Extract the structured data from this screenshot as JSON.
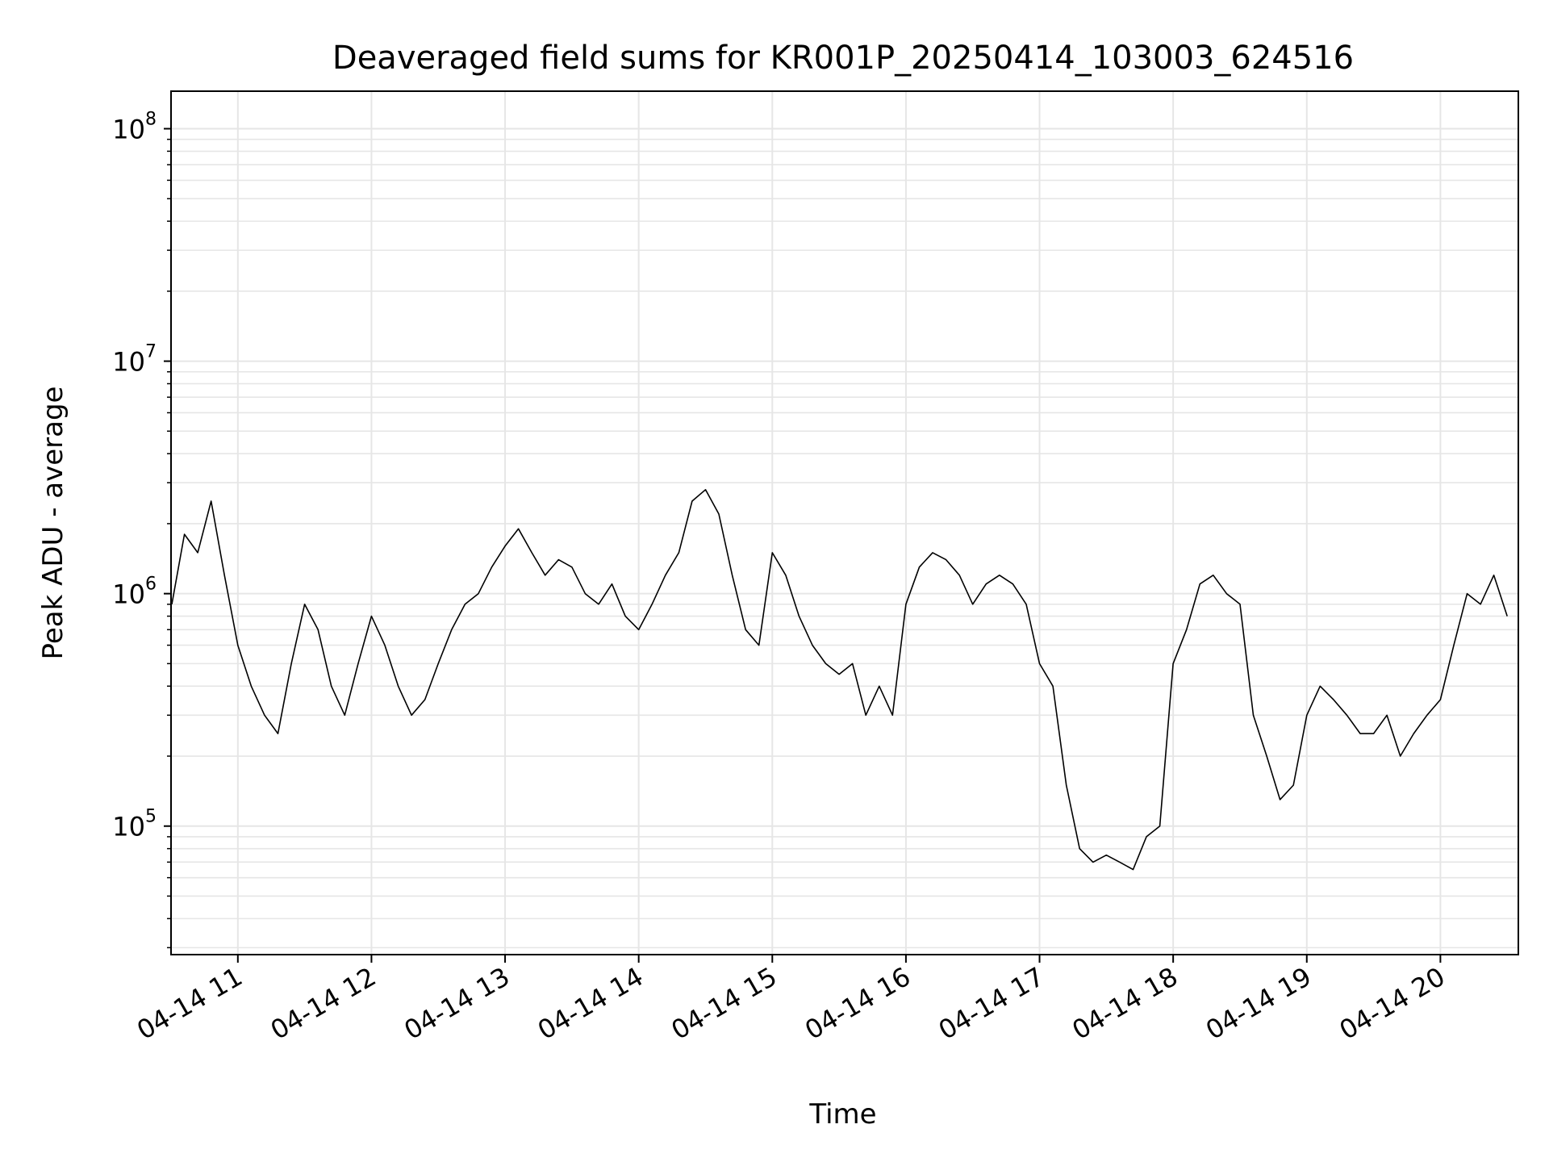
{
  "chart_data": {
    "type": "line",
    "title": "Deaveraged field sums for KR001P_20250414_103003_624516",
    "xlabel": "Time",
    "ylabel": "Peak ADU - average",
    "yscale": "log",
    "ylim": [
      28000,
      145000000
    ],
    "xlim": [
      "2025-04-14 10:30",
      "2025-04-14 20:35"
    ],
    "grid": true,
    "line_color": "#000000",
    "grid_color": "#e6e6e6",
    "x_ticks": [
      {
        "value": "2025-04-14 11:00",
        "label": "04-14 11"
      },
      {
        "value": "2025-04-14 12:00",
        "label": "04-14 12"
      },
      {
        "value": "2025-04-14 13:00",
        "label": "04-14 13"
      },
      {
        "value": "2025-04-14 14:00",
        "label": "04-14 14"
      },
      {
        "value": "2025-04-14 15:00",
        "label": "04-14 15"
      },
      {
        "value": "2025-04-14 16:00",
        "label": "04-14 16"
      },
      {
        "value": "2025-04-14 17:00",
        "label": "04-14 17"
      },
      {
        "value": "2025-04-14 18:00",
        "label": "04-14 18"
      },
      {
        "value": "2025-04-14 19:00",
        "label": "04-14 19"
      },
      {
        "value": "2025-04-14 20:00",
        "label": "04-14 20"
      }
    ],
    "y_ticks": [
      {
        "value": 100000,
        "base": "10",
        "exp": "5"
      },
      {
        "value": 1000000,
        "base": "10",
        "exp": "6"
      },
      {
        "value": 10000000,
        "base": "10",
        "exp": "7"
      },
      {
        "value": 100000000,
        "base": "10",
        "exp": "8"
      }
    ],
    "series": [
      {
        "x": [
          "2025-04-14 10:30",
          "2025-04-14 10:36",
          "2025-04-14 10:42",
          "2025-04-14 10:48",
          "2025-04-14 10:54",
          "2025-04-14 11:00",
          "2025-04-14 11:06",
          "2025-04-14 11:12",
          "2025-04-14 11:18",
          "2025-04-14 11:24",
          "2025-04-14 11:30",
          "2025-04-14 11:36",
          "2025-04-14 11:42",
          "2025-04-14 11:48",
          "2025-04-14 11:54",
          "2025-04-14 12:00",
          "2025-04-14 12:06",
          "2025-04-14 12:12",
          "2025-04-14 12:18",
          "2025-04-14 12:24",
          "2025-04-14 12:30",
          "2025-04-14 12:36",
          "2025-04-14 12:42",
          "2025-04-14 12:48",
          "2025-04-14 12:54",
          "2025-04-14 13:00",
          "2025-04-14 13:06",
          "2025-04-14 13:12",
          "2025-04-14 13:18",
          "2025-04-14 13:24",
          "2025-04-14 13:30",
          "2025-04-14 13:36",
          "2025-04-14 13:42",
          "2025-04-14 13:48",
          "2025-04-14 13:54",
          "2025-04-14 14:00",
          "2025-04-14 14:06",
          "2025-04-14 14:12",
          "2025-04-14 14:18",
          "2025-04-14 14:24",
          "2025-04-14 14:30",
          "2025-04-14 14:36",
          "2025-04-14 14:42",
          "2025-04-14 14:48",
          "2025-04-14 14:54",
          "2025-04-14 15:00",
          "2025-04-14 15:06",
          "2025-04-14 15:12",
          "2025-04-14 15:18",
          "2025-04-14 15:24",
          "2025-04-14 15:30",
          "2025-04-14 15:36",
          "2025-04-14 15:42",
          "2025-04-14 15:48",
          "2025-04-14 15:54",
          "2025-04-14 16:00",
          "2025-04-14 16:06",
          "2025-04-14 16:12",
          "2025-04-14 16:18",
          "2025-04-14 16:24",
          "2025-04-14 16:30",
          "2025-04-14 16:36",
          "2025-04-14 16:42",
          "2025-04-14 16:48",
          "2025-04-14 16:54",
          "2025-04-14 17:00",
          "2025-04-14 17:06",
          "2025-04-14 17:12",
          "2025-04-14 17:18",
          "2025-04-14 17:24",
          "2025-04-14 17:30",
          "2025-04-14 17:36",
          "2025-04-14 17:42",
          "2025-04-14 17:48",
          "2025-04-14 17:54",
          "2025-04-14 18:00",
          "2025-04-14 18:06",
          "2025-04-14 18:12",
          "2025-04-14 18:18",
          "2025-04-14 18:24",
          "2025-04-14 18:30",
          "2025-04-14 18:36",
          "2025-04-14 18:42",
          "2025-04-14 18:48",
          "2025-04-14 18:54",
          "2025-04-14 19:00",
          "2025-04-14 19:06",
          "2025-04-14 19:12",
          "2025-04-14 19:18",
          "2025-04-14 19:24",
          "2025-04-14 19:30",
          "2025-04-14 19:36",
          "2025-04-14 19:42",
          "2025-04-14 19:48",
          "2025-04-14 19:54",
          "2025-04-14 20:00",
          "2025-04-14 20:06",
          "2025-04-14 20:12",
          "2025-04-14 20:18",
          "2025-04-14 20:24",
          "2025-04-14 20:30"
        ],
        "y": [
          900000,
          1800000,
          1500000,
          2500000,
          1200000,
          600000,
          400000,
          300000,
          250000,
          500000,
          900000,
          700000,
          400000,
          300000,
          500000,
          800000,
          600000,
          400000,
          300000,
          350000,
          500000,
          700000,
          900000,
          1000000,
          1300000,
          1600000,
          1900000,
          1500000,
          1200000,
          1400000,
          1300000,
          1000000,
          900000,
          1100000,
          800000,
          700000,
          900000,
          1200000,
          1500000,
          2500000,
          2800000,
          2200000,
          1200000,
          700000,
          600000,
          1500000,
          1200000,
          800000,
          600000,
          500000,
          450000,
          500000,
          300000,
          400000,
          300000,
          900000,
          1300000,
          1500000,
          1400000,
          1200000,
          900000,
          1100000,
          1200000,
          1100000,
          900000,
          500000,
          400000,
          150000,
          80000,
          70000,
          75000,
          70000,
          65000,
          90000,
          100000,
          500000,
          700000,
          1100000,
          1200000,
          1000000,
          900000,
          300000,
          200000,
          130000,
          150000,
          300000,
          400000,
          350000,
          300000,
          250000,
          250000,
          300000,
          200000,
          250000,
          300000,
          350000,
          600000,
          1000000,
          900000,
          1200000,
          800000
        ]
      }
    ]
  }
}
